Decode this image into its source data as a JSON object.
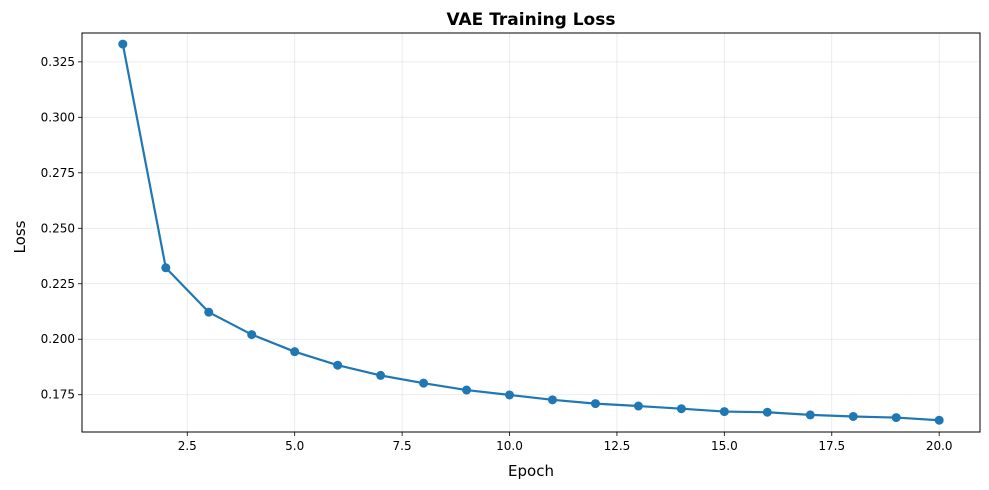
{
  "chart_data": {
    "type": "line",
    "title": "VAE Training Loss",
    "xlabel": "Epoch",
    "ylabel": "Loss",
    "xlim": [
      0.05,
      20.95
    ],
    "ylim": [
      0.1582,
      0.338
    ],
    "grid": true,
    "x_ticks": [
      2.5,
      5.0,
      7.5,
      10.0,
      12.5,
      15.0,
      17.5,
      20.0
    ],
    "x_tick_labels": [
      "2.5",
      "5.0",
      "7.5",
      "10.0",
      "12.5",
      "15.0",
      "17.5",
      "20.0"
    ],
    "y_ticks": [
      0.175,
      0.2,
      0.225,
      0.25,
      0.275,
      0.3,
      0.325
    ],
    "y_tick_labels": [
      "0.175",
      "0.200",
      "0.225",
      "0.250",
      "0.275",
      "0.300",
      "0.325"
    ],
    "series": [
      {
        "color": "#1f77b4",
        "marker": "circle",
        "x": [
          1,
          2,
          3,
          4,
          5,
          6,
          7,
          8,
          9,
          10,
          11,
          12,
          13,
          14,
          15,
          16,
          17,
          18,
          19,
          20
        ],
        "y": [
          0.333,
          0.2322,
          0.2122,
          0.2021,
          0.1944,
          0.1883,
          0.1837,
          0.1802,
          0.1771,
          0.1749,
          0.1727,
          0.171,
          0.1699,
          0.1687,
          0.1674,
          0.1671,
          0.1659,
          0.1652,
          0.1647,
          0.1635
        ]
      }
    ]
  }
}
